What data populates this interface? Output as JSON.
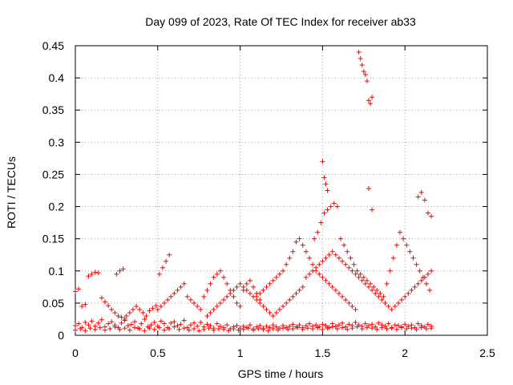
{
  "chart_data": {
    "type": "scatter",
    "title": "Day 099 of 2023, Rate Of TEC Index for receiver ab33",
    "xlabel": "GPS time / hours",
    "ylabel": "ROTI / TECUs",
    "xlim": [
      0,
      2.5
    ],
    "ylim": [
      0,
      0.45
    ],
    "xticks": [
      "0",
      "0.5",
      "1",
      "1.5",
      "2",
      "2.5"
    ],
    "yticks": [
      "0",
      "0.05",
      "0.1",
      "0.15",
      "0.2",
      "0.25",
      "0.3",
      "0.35",
      "0.4",
      "0.45"
    ],
    "grid": true,
    "legend": "none",
    "marker": "+",
    "color": "#ff0000",
    "series": [
      {
        "x": [
          0.0,
          0.02,
          0.04,
          0.06,
          0.08,
          0.1,
          0.12,
          0.14,
          0.16,
          0.18,
          0.2,
          0.22,
          0.24,
          0.26,
          0.28,
          0.3,
          0.32,
          0.34,
          0.36,
          0.38,
          0.4,
          0.42,
          0.44,
          0.46,
          0.48,
          0.5,
          0.52,
          0.54,
          0.56,
          0.58,
          0.6,
          0.62,
          0.64,
          0.66,
          0.68,
          0.7,
          0.72,
          0.74,
          0.76,
          0.78,
          0.8,
          0.82,
          0.84,
          0.86,
          0.88,
          0.9,
          0.92,
          0.94,
          0.96,
          0.98,
          1.0,
          1.02,
          1.04,
          1.06,
          1.08,
          1.1,
          1.12,
          1.14,
          1.16,
          1.18,
          1.2,
          1.22,
          1.24,
          1.26,
          1.28,
          1.3,
          1.32,
          1.34,
          1.36,
          1.38,
          1.4,
          1.42,
          1.44,
          1.46,
          1.48,
          1.5,
          1.52,
          1.54,
          1.56,
          1.58,
          1.6,
          1.62,
          1.64,
          1.66,
          1.68,
          1.7,
          1.72,
          1.74,
          1.76,
          1.78,
          1.8,
          1.82,
          1.84,
          1.86,
          1.88,
          1.9,
          1.92,
          1.94,
          1.96,
          1.98,
          2.0,
          2.02,
          2.04,
          2.06,
          2.08,
          2.1,
          2.12,
          2.14,
          2.16,
          0.0,
          0.03,
          0.06,
          0.09,
          0.12,
          0.15,
          0.18,
          0.21,
          0.24,
          0.27,
          0.3,
          0.33,
          0.36,
          0.39,
          0.42,
          0.45,
          0.48,
          0.51,
          0.54,
          0.57,
          0.6,
          0.63,
          0.66,
          0.69,
          0.72,
          0.75,
          0.78,
          0.81,
          0.84,
          0.87,
          0.9,
          0.93,
          0.96,
          0.99,
          1.02,
          1.05,
          1.08,
          1.11,
          1.14,
          1.17,
          1.2,
          1.23,
          1.26,
          1.29,
          1.32,
          1.35,
          1.38,
          1.41,
          1.44,
          1.47,
          1.5,
          1.53,
          1.56,
          1.59,
          1.62,
          1.65,
          1.68,
          1.71,
          1.74,
          1.77,
          1.8,
          1.83,
          1.86,
          1.89,
          1.92,
          1.95,
          1.98,
          2.01,
          2.04,
          2.07,
          2.1,
          2.13,
          2.16,
          0.0,
          0.02,
          0.04,
          0.06,
          0.08,
          0.1,
          0.12,
          0.14,
          0.16,
          0.18,
          0.2,
          0.22,
          0.24,
          0.26,
          0.28,
          0.3,
          0.25,
          0.27,
          0.29,
          0.31,
          0.33,
          0.35,
          0.37,
          0.39,
          0.41,
          0.43,
          0.45,
          0.47,
          0.49,
          0.51,
          0.53,
          0.55,
          0.57,
          0.5,
          0.52,
          0.54,
          0.56,
          0.58,
          0.6,
          0.62,
          0.64,
          0.66,
          0.68,
          0.7,
          0.72,
          0.74,
          0.76,
          0.78,
          0.8,
          0.82,
          0.84,
          0.86,
          0.88,
          0.9,
          0.92,
          0.94,
          0.96,
          0.98,
          1.0,
          1.02,
          1.04,
          1.06,
          1.08,
          1.1,
          1.12,
          1.1,
          1.12,
          1.14,
          1.16,
          1.18,
          1.2,
          1.22,
          1.24,
          1.26,
          1.28,
          1.3,
          1.32,
          1.34,
          1.36,
          1.38,
          1.4,
          1.42,
          1.44,
          1.46,
          1.48,
          1.5,
          1.52,
          1.54,
          1.56,
          1.58,
          1.6,
          1.62,
          1.64,
          1.66,
          1.68,
          1.7,
          1.45,
          1.47,
          1.49,
          1.51,
          1.53,
          1.55,
          1.57,
          1.59,
          1.61,
          1.63,
          1.65,
          1.67,
          1.69,
          1.71,
          1.73,
          1.75,
          1.77,
          1.79,
          1.81,
          1.83,
          1.85,
          1.87,
          1.89,
          1.91,
          1.93,
          1.95,
          1.97,
          1.99,
          2.01,
          2.03,
          2.05,
          2.07,
          2.09,
          2.11,
          2.13,
          2.15,
          1.72,
          1.73,
          1.74,
          1.75,
          1.76,
          1.77,
          1.78,
          1.79,
          1.8,
          1.5,
          1.51,
          1.52,
          1.53,
          1.78,
          1.8,
          2.08,
          2.1,
          2.12,
          2.14,
          2.16,
          1.4,
          1.42,
          1.44,
          1.46,
          1.48,
          1.5,
          1.52,
          1.54,
          1.56,
          1.58,
          1.6,
          1.62,
          1.64,
          1.66,
          1.68,
          1.7,
          1.72,
          1.74,
          1.76,
          1.78,
          1.8,
          1.82,
          1.84,
          1.86,
          1.88,
          1.9,
          1.92,
          1.94,
          1.96,
          1.98,
          2.0,
          2.02,
          2.04,
          2.06,
          2.08,
          2.1,
          2.12,
          2.14,
          2.16,
          0.8,
          0.82,
          0.84,
          0.86,
          0.88,
          0.9,
          0.92,
          0.94,
          0.96,
          0.98,
          1.0,
          1.02,
          1.04,
          1.06,
          1.08,
          1.1,
          1.12,
          1.14,
          1.16,
          1.18,
          1.2,
          1.22,
          1.24,
          1.26,
          1.28,
          1.3,
          1.32,
          1.34,
          1.36,
          1.38
        ],
        "y": [
          0.015,
          0.018,
          0.012,
          0.02,
          0.016,
          0.022,
          0.014,
          0.019,
          0.024,
          0.013,
          0.018,
          0.021,
          0.016,
          0.012,
          0.019,
          0.023,
          0.015,
          0.017,
          0.021,
          0.011,
          0.018,
          0.025,
          0.013,
          0.016,
          0.02,
          0.014,
          0.022,
          0.018,
          0.012,
          0.019,
          0.021,
          0.015,
          0.017,
          0.023,
          0.012,
          0.016,
          0.019,
          0.014,
          0.02,
          0.013,
          0.017,
          0.015,
          0.011,
          0.018,
          0.014,
          0.012,
          0.016,
          0.01,
          0.013,
          0.015,
          0.011,
          0.014,
          0.012,
          0.016,
          0.01,
          0.013,
          0.015,
          0.011,
          0.014,
          0.012,
          0.016,
          0.013,
          0.011,
          0.015,
          0.012,
          0.014,
          0.017,
          0.013,
          0.016,
          0.012,
          0.015,
          0.018,
          0.014,
          0.016,
          0.013,
          0.017,
          0.015,
          0.012,
          0.018,
          0.014,
          0.016,
          0.019,
          0.013,
          0.017,
          0.015,
          0.02,
          0.016,
          0.014,
          0.018,
          0.015,
          0.017,
          0.013,
          0.019,
          0.016,
          0.014,
          0.018,
          0.012,
          0.016,
          0.015,
          0.013,
          0.017,
          0.014,
          0.016,
          0.012,
          0.018,
          0.015,
          0.013,
          0.017,
          0.014,
          0.008,
          0.01,
          0.007,
          0.011,
          0.009,
          0.012,
          0.008,
          0.01,
          0.013,
          0.009,
          0.011,
          0.008,
          0.012,
          0.01,
          0.007,
          0.011,
          0.009,
          0.012,
          0.008,
          0.01,
          0.013,
          0.009,
          0.011,
          0.008,
          0.01,
          0.007,
          0.009,
          0.011,
          0.008,
          0.01,
          0.009,
          0.007,
          0.01,
          0.008,
          0.009,
          0.011,
          0.008,
          0.01,
          0.009,
          0.007,
          0.01,
          0.008,
          0.011,
          0.009,
          0.01,
          0.012,
          0.009,
          0.011,
          0.01,
          0.012,
          0.009,
          0.011,
          0.013,
          0.01,
          0.012,
          0.009,
          0.011,
          0.013,
          0.01,
          0.012,
          0.011,
          0.009,
          0.012,
          0.01,
          0.011,
          0.009,
          0.012,
          0.01,
          0.011,
          0.009,
          0.012,
          0.01,
          0.011,
          0.068,
          0.072,
          0.045,
          0.048,
          0.092,
          0.095,
          0.098,
          0.097,
          0.058,
          0.052,
          0.046,
          0.04,
          0.035,
          0.03,
          0.028,
          0.025,
          0.095,
          0.1,
          0.103,
          0.03,
          0.035,
          0.04,
          0.045,
          0.04,
          0.035,
          0.03,
          0.038,
          0.042,
          0.046,
          0.095,
          0.105,
          0.115,
          0.125,
          0.04,
          0.045,
          0.05,
          0.055,
          0.06,
          0.065,
          0.07,
          0.075,
          0.08,
          0.06,
          0.055,
          0.05,
          0.045,
          0.04,
          0.06,
          0.07,
          0.08,
          0.09,
          0.095,
          0.1,
          0.09,
          0.08,
          0.07,
          0.06,
          0.05,
          0.045,
          0.07,
          0.08,
          0.085,
          0.075,
          0.065,
          0.055,
          0.06,
          0.065,
          0.07,
          0.075,
          0.08,
          0.085,
          0.09,
          0.095,
          0.1,
          0.11,
          0.12,
          0.13,
          0.145,
          0.15,
          0.14,
          0.13,
          0.12,
          0.11,
          0.1,
          0.095,
          0.09,
          0.085,
          0.08,
          0.075,
          0.07,
          0.065,
          0.06,
          0.055,
          0.05,
          0.045,
          0.04,
          0.15,
          0.16,
          0.175,
          0.19,
          0.195,
          0.2,
          0.205,
          0.2,
          0.15,
          0.14,
          0.13,
          0.12,
          0.11,
          0.1,
          0.095,
          0.09,
          0.085,
          0.08,
          0.075,
          0.07,
          0.065,
          0.06,
          0.08,
          0.1,
          0.12,
          0.14,
          0.16,
          0.15,
          0.14,
          0.13,
          0.12,
          0.11,
          0.1,
          0.09,
          0.08,
          0.07,
          0.44,
          0.43,
          0.42,
          0.41,
          0.405,
          0.395,
          0.365,
          0.36,
          0.37,
          0.27,
          0.245,
          0.235,
          0.225,
          0.228,
          0.195,
          0.215,
          0.222,
          0.21,
          0.19,
          0.185,
          0.09,
          0.095,
          0.1,
          0.105,
          0.11,
          0.115,
          0.12,
          0.125,
          0.13,
          0.125,
          0.12,
          0.115,
          0.11,
          0.105,
          0.1,
          0.095,
          0.09,
          0.085,
          0.08,
          0.075,
          0.07,
          0.065,
          0.06,
          0.055,
          0.05,
          0.045,
          0.04,
          0.045,
          0.05,
          0.055,
          0.06,
          0.065,
          0.07,
          0.075,
          0.08,
          0.085,
          0.09,
          0.095,
          0.1,
          0.03,
          0.035,
          0.04,
          0.045,
          0.05,
          0.055,
          0.06,
          0.065,
          0.07,
          0.075,
          0.08,
          0.075,
          0.07,
          0.065,
          0.06,
          0.055,
          0.05,
          0.045,
          0.04,
          0.035,
          0.03,
          0.035,
          0.04,
          0.045,
          0.05,
          0.055,
          0.06,
          0.065,
          0.07,
          0.075
        ]
      }
    ]
  }
}
